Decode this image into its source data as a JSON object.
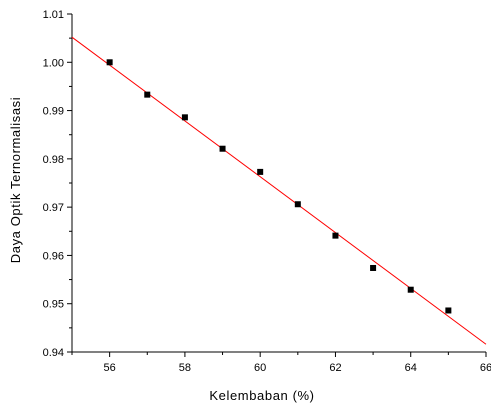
{
  "chart_data": {
    "type": "scatter",
    "title": "",
    "xlabel": "Kelembaban (%)",
    "ylabel": "Daya Optik Ternormalisasi",
    "xlim": [
      55,
      66
    ],
    "ylim": [
      0.94,
      1.01
    ],
    "x_ticks": [
      56,
      58,
      60,
      62,
      64,
      66
    ],
    "x_tick_labels": [
      "56",
      "58",
      "60",
      "62",
      "64",
      "66"
    ],
    "y_ticks": [
      0.94,
      0.95,
      0.96,
      0.97,
      0.98,
      0.99,
      1.0,
      1.01
    ],
    "y_tick_labels": [
      "0.94",
      "0.95",
      "0.96",
      "0.97",
      "0.98",
      "0.99",
      "1.00",
      "1.01"
    ],
    "grid": false,
    "legend": "none",
    "series": [
      {
        "x": [
          56,
          57,
          58,
          59,
          60,
          61,
          62,
          63,
          64,
          65
        ],
        "y": [
          1.0,
          0.9933,
          0.9886,
          0.9821,
          0.9773,
          0.9706,
          0.9641,
          0.9574,
          0.9529,
          0.9486
        ],
        "marker": "square",
        "color": "#000000"
      }
    ],
    "fit_line": {
      "x": [
        55,
        66
      ],
      "y": [
        1.0052,
        0.9416
      ],
      "color": "#ff0000"
    }
  }
}
